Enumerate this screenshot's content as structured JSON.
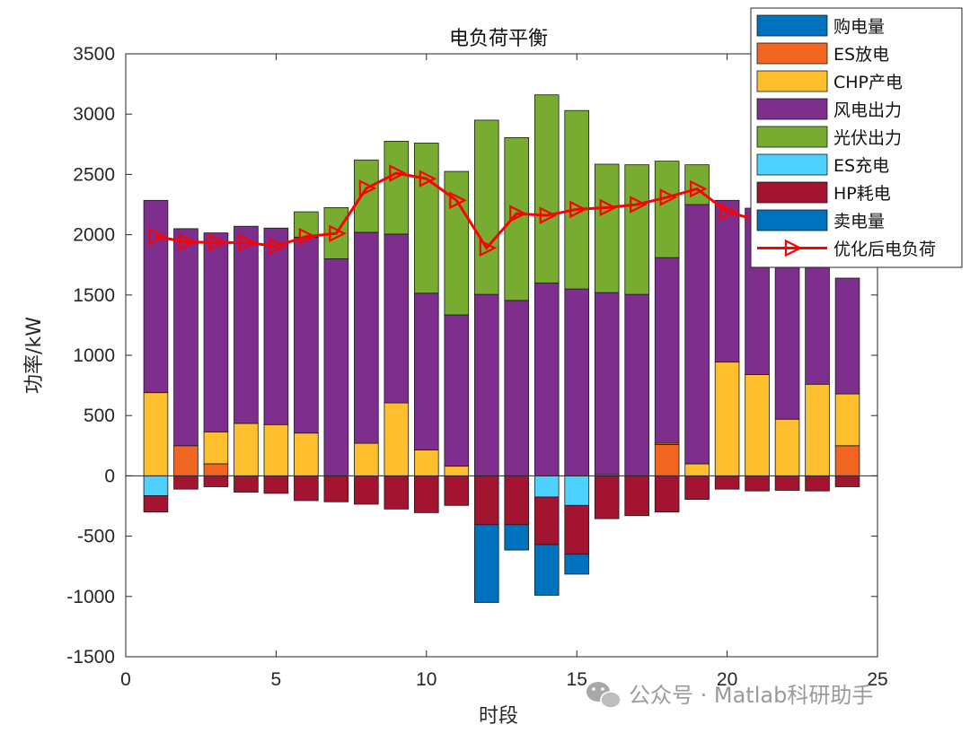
{
  "chart_data": {
    "type": "bar",
    "stacked": true,
    "title": "电负荷平衡",
    "xlabel": "时段",
    "ylabel": "功率/kW",
    "xlim": [
      0,
      25
    ],
    "ylim": [
      -1500,
      3500
    ],
    "xticks": [
      0,
      5,
      10,
      15,
      20,
      25
    ],
    "yticks": [
      -1500,
      -1000,
      -500,
      0,
      500,
      1000,
      1500,
      2000,
      2500,
      3000,
      3500
    ],
    "x": [
      1,
      2,
      3,
      4,
      5,
      6,
      7,
      8,
      9,
      10,
      11,
      12,
      13,
      14,
      15,
      16,
      17,
      18,
      19,
      20,
      21,
      22,
      23,
      24
    ],
    "legend_position": "top-right",
    "positive_series": [
      {
        "name": "购电量",
        "color": "#0072BD",
        "values": [
          0,
          0,
          0,
          0,
          0,
          0,
          0,
          0,
          0,
          0,
          0,
          0,
          0,
          0,
          0,
          0,
          0,
          0,
          0,
          0,
          0,
          0,
          0,
          0
        ]
      },
      {
        "name": "ES放电",
        "color": "#F0651F",
        "values": [
          0,
          250,
          100,
          0,
          0,
          0,
          0,
          0,
          0,
          0,
          0,
          0,
          0,
          0,
          0,
          0,
          0,
          260,
          0,
          0,
          0,
          0,
          0,
          250
        ]
      },
      {
        "name": "CHP产电",
        "color": "#FDBF2D",
        "values": [
          690,
          0,
          265,
          435,
          425,
          355,
          0,
          270,
          605,
          215,
          80,
          0,
          0,
          0,
          0,
          10,
          0,
          10,
          100,
          945,
          840,
          470,
          760,
          430
        ]
      },
      {
        "name": "风电出力",
        "color": "#7E2F8E",
        "values": [
          1595,
          1800,
          1650,
          1635,
          1630,
          1625,
          1800,
          1750,
          1400,
          1300,
          1255,
          1505,
          1455,
          1600,
          1550,
          1510,
          1505,
          1540,
          2150,
          1340,
          1380,
          1330,
          1000,
          960
        ]
      },
      {
        "name": "光伏出力",
        "color": "#77AC30",
        "values": [
          0,
          0,
          0,
          0,
          0,
          210,
          425,
          600,
          770,
          1245,
          1190,
          1445,
          1350,
          1560,
          1480,
          1065,
          1075,
          800,
          330,
          0,
          0,
          0,
          0,
          0
        ]
      }
    ],
    "negative_series": [
      {
        "name": "ES充电",
        "color": "#4DD2FF",
        "values": [
          -165,
          0,
          0,
          0,
          0,
          0,
          0,
          0,
          0,
          0,
          0,
          0,
          0,
          -175,
          -245,
          0,
          0,
          0,
          0,
          0,
          0,
          0,
          0,
          0
        ]
      },
      {
        "name": "HP耗电",
        "color": "#A2142F",
        "values": [
          -135,
          -110,
          -90,
          -135,
          -145,
          -205,
          -215,
          -235,
          -275,
          -305,
          -245,
          -405,
          -405,
          -395,
          -405,
          -355,
          -330,
          -300,
          -195,
          -110,
          -125,
          -120,
          -125,
          -90
        ]
      },
      {
        "name": "卖电量",
        "color": "#0072BD",
        "values": [
          0,
          0,
          0,
          0,
          0,
          0,
          0,
          0,
          0,
          0,
          0,
          -645,
          -210,
          -420,
          -165,
          0,
          0,
          0,
          0,
          0,
          0,
          0,
          0,
          0
        ]
      }
    ],
    "line_series": {
      "name": "优化后电负荷",
      "color": "#FF0000",
      "values": [
        1985,
        1940,
        1935,
        1935,
        1905,
        1985,
        2010,
        2385,
        2510,
        2465,
        2285,
        1890,
        2175,
        2160,
        2210,
        2225,
        2250,
        2310,
        2380,
        2190,
        2120,
        2060,
        1935,
        1920
      ]
    }
  },
  "watermark": {
    "text": "公众号 · Matlab科研助手",
    "icon": "wechat-icon"
  }
}
